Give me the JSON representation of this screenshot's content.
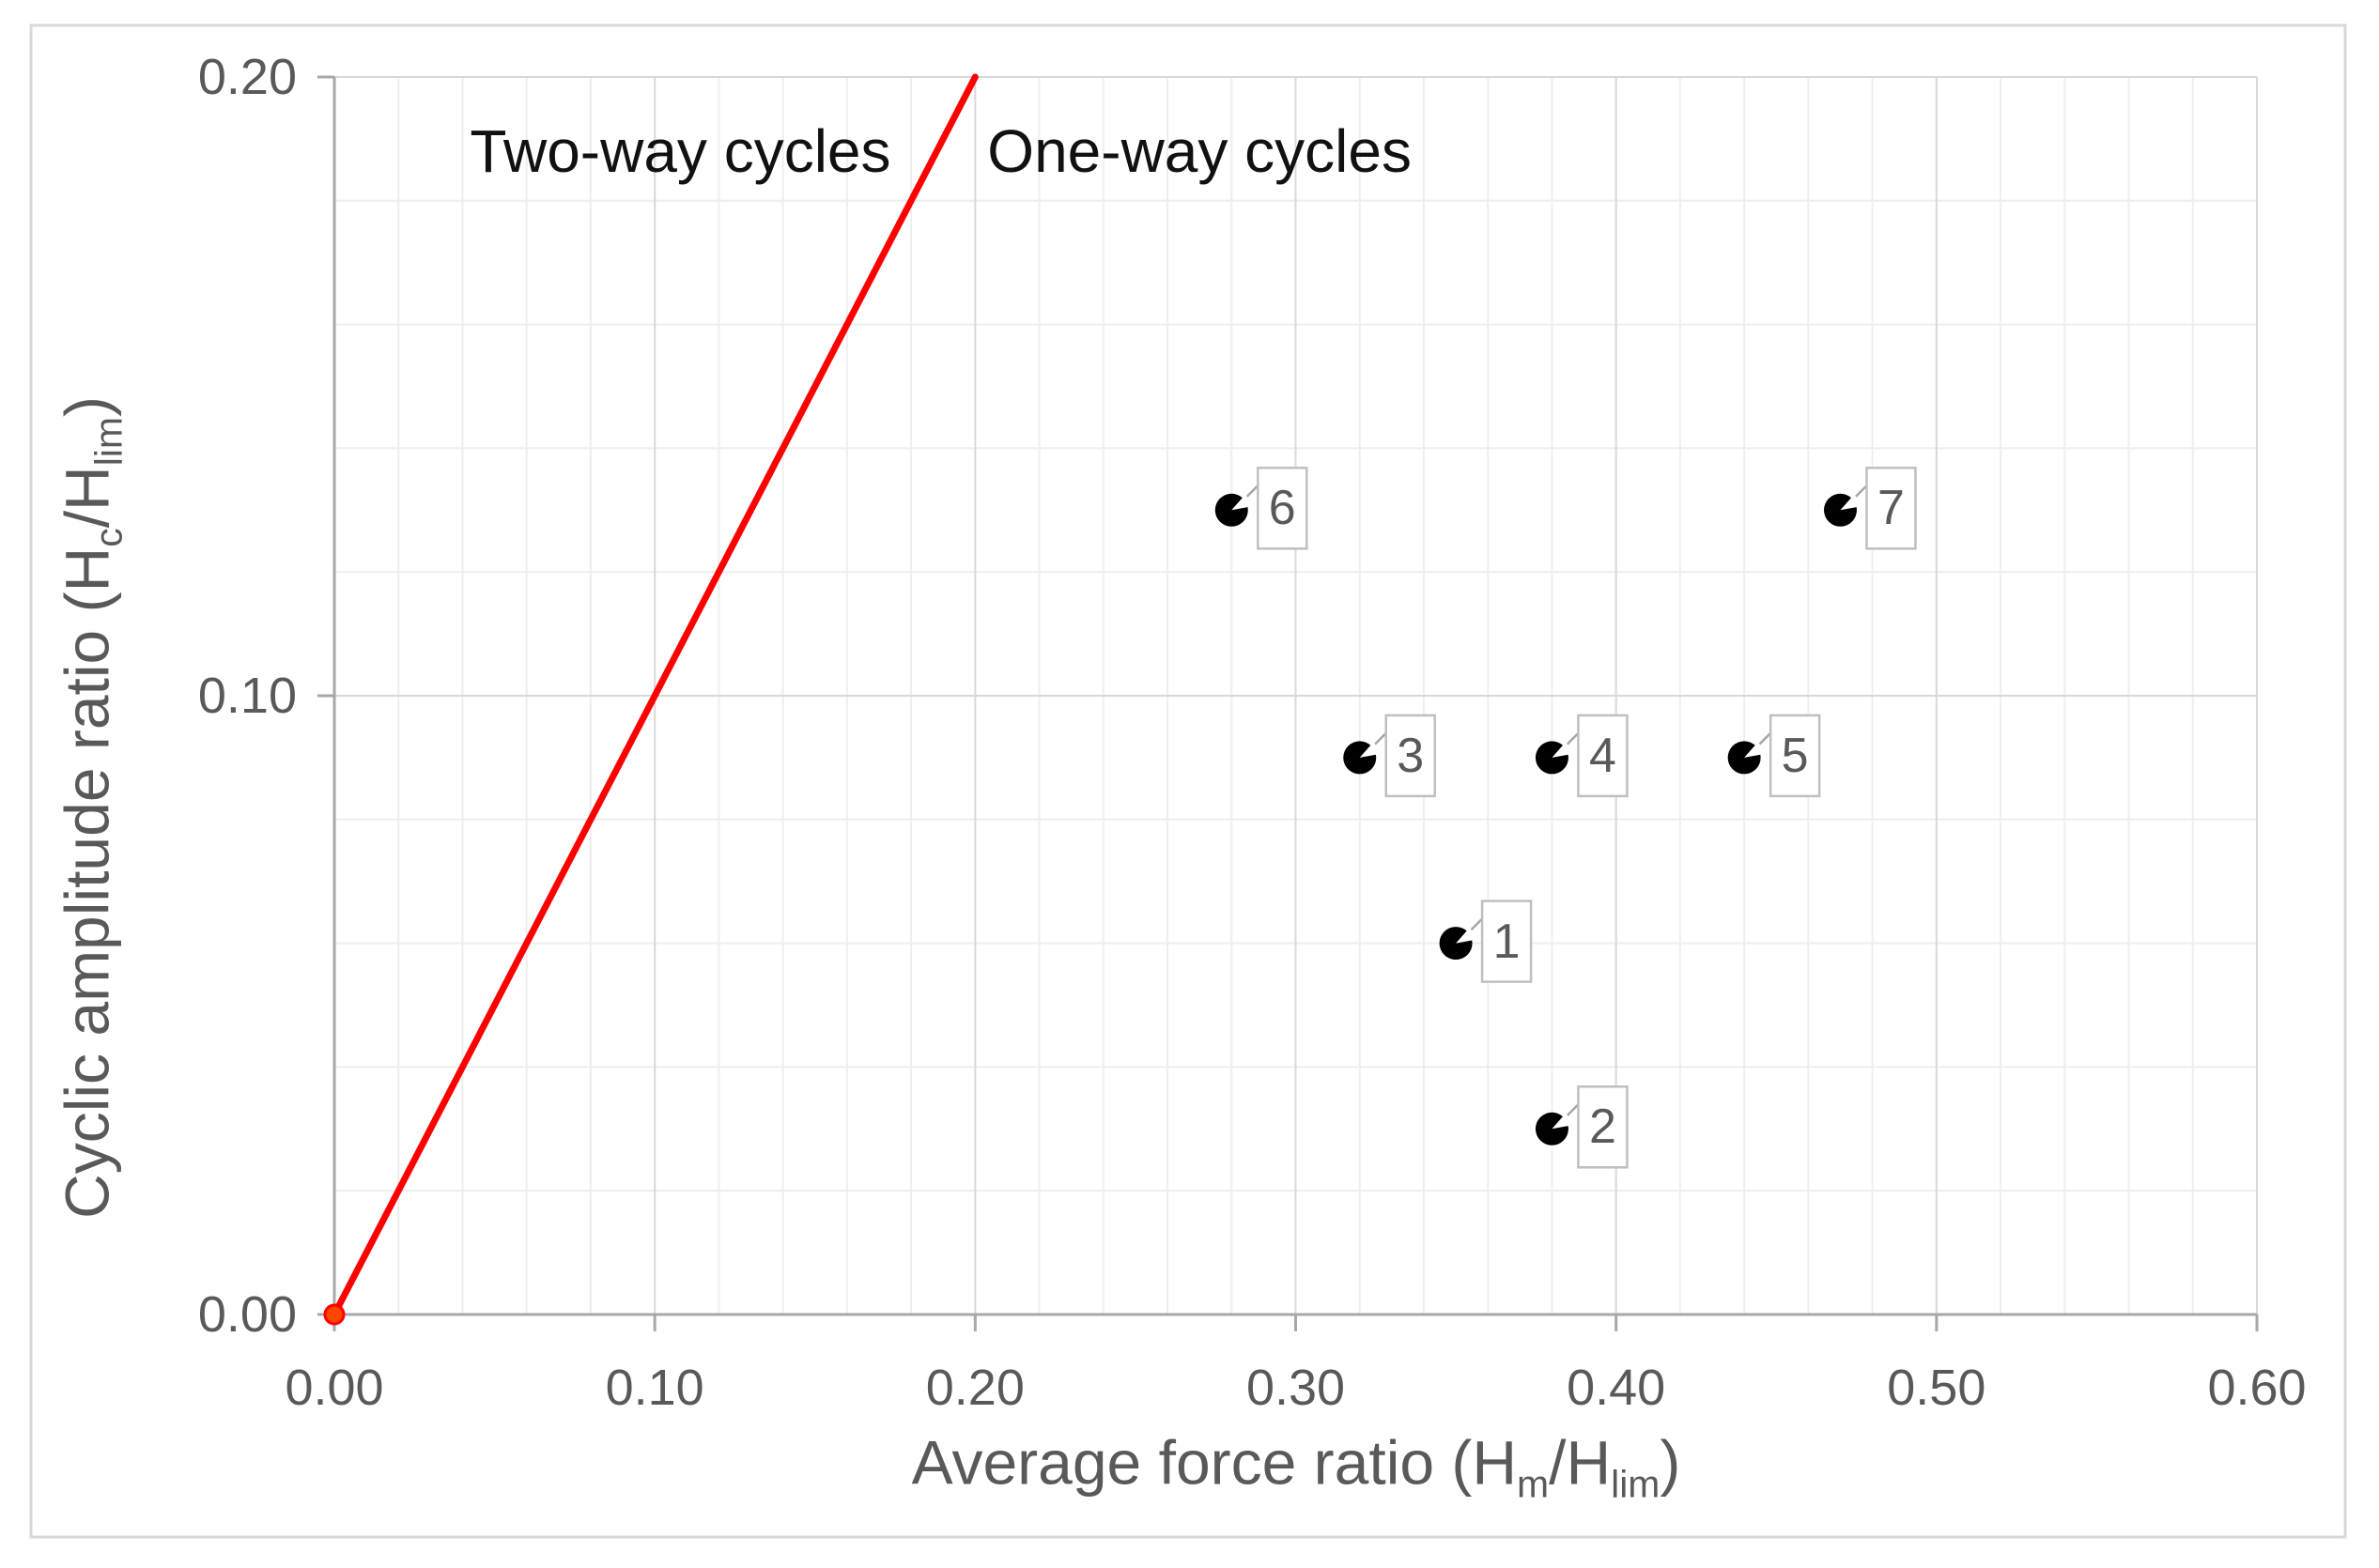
{
  "figure": {
    "y_axis_title": {
      "pre": "Cyclic amplitude ratio (H",
      "sub1": "c",
      "mid": "/H",
      "sub2": "lim",
      "post": ")"
    },
    "x_axis_title": {
      "pre": "Average force ratio (H",
      "sub1": "m",
      "mid": "/H",
      "sub2": "lim",
      "post": ")"
    }
  },
  "chart_data": {
    "type": "scatter",
    "title": "",
    "xlabel": "Average force ratio (Hm/Hlim)",
    "ylabel": "Cyclic amplitude ratio (Hc/Hlim)",
    "xlim": [
      0.0,
      0.6
    ],
    "ylim": [
      0.0,
      0.2
    ],
    "x_ticks": [
      0.0,
      0.1,
      0.2,
      0.3,
      0.4,
      0.5,
      0.6
    ],
    "x_tick_labels": [
      "0.00",
      "0.10",
      "0.20",
      "0.30",
      "0.40",
      "0.50",
      "0.60"
    ],
    "y_ticks": [
      0.0,
      0.1,
      0.2
    ],
    "y_tick_labels": [
      "0.00",
      "0.10",
      "0.20"
    ],
    "grid": {
      "on": true,
      "minor_step": 0.02,
      "major_step": 0.1
    },
    "legend": "none",
    "points": [
      {
        "label": "1",
        "x": 0.35,
        "y": 0.06
      },
      {
        "label": "2",
        "x": 0.38,
        "y": 0.03
      },
      {
        "label": "3",
        "x": 0.32,
        "y": 0.09
      },
      {
        "label": "4",
        "x": 0.38,
        "y": 0.09
      },
      {
        "label": "5",
        "x": 0.44,
        "y": 0.09
      },
      {
        "label": "6",
        "x": 0.28,
        "y": 0.13
      },
      {
        "label": "7",
        "x": 0.47,
        "y": 0.13
      }
    ],
    "separator_line": {
      "from": [
        0.0,
        0.0
      ],
      "to": [
        0.2,
        0.2
      ],
      "style": "dotted",
      "color": "#FE0000"
    },
    "origin_marker": {
      "x": 0.0,
      "y": 0.0,
      "color": "#FF4500"
    },
    "annotations": [
      {
        "text": "Two-way cycles",
        "x": 0.108,
        "y": 0.188
      },
      {
        "text": "One-way cycles",
        "x": 0.27,
        "y": 0.188
      }
    ]
  },
  "colors": {
    "background": "#ffffff",
    "figure_border": "#D9D9D9",
    "grid_minor": "#EEEEEE",
    "grid_major": "#D8D8D8",
    "axis": "#A8A8A8",
    "tick_label": "#595959",
    "annotation_text": "#111111",
    "marker": "#000000",
    "label_box_border": "#BFBFBF",
    "leader_line": "#A6A6A6",
    "separator_line": "#FE0000",
    "origin_marker_fill": "#FF4500",
    "origin_marker_stroke": "#FD0000"
  }
}
